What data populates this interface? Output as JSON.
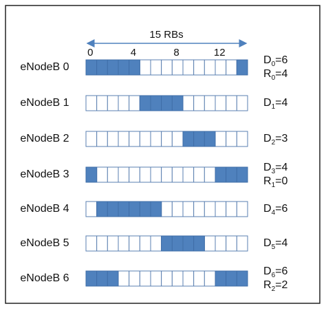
{
  "header": {
    "rb_span": {
      "value": 15,
      "label": "15 RBs"
    },
    "ticks": [
      0,
      4,
      8,
      12
    ]
  },
  "rows": [
    {
      "label": "eNodeB 0",
      "filled": [
        0,
        1,
        2,
        3,
        4,
        14
      ],
      "notes": [
        {
          "name": "D",
          "sub": "0",
          "rest": "=6"
        },
        {
          "name": "R",
          "sub": "0",
          "rest": "=4"
        }
      ]
    },
    {
      "label": "eNodeB 1",
      "filled": [
        5,
        6,
        7,
        8
      ],
      "notes": [
        {
          "name": "D",
          "sub": "1",
          "rest": "=4"
        }
      ]
    },
    {
      "label": "eNodeB 2",
      "filled": [
        9,
        10,
        11
      ],
      "notes": [
        {
          "name": "D",
          "sub": "2",
          "rest": "=3"
        }
      ]
    },
    {
      "label": "eNodeB 3",
      "filled": [
        0,
        12,
        13,
        14
      ],
      "notes": [
        {
          "name": "D",
          "sub": "3",
          "rest": "=4"
        },
        {
          "name": "R",
          "sub": "1",
          "rest": "=0"
        }
      ]
    },
    {
      "label": "eNodeB 4",
      "filled": [
        1,
        2,
        3,
        4,
        5,
        6
      ],
      "notes": [
        {
          "name": "D",
          "sub": "4",
          "rest": "=6"
        }
      ]
    },
    {
      "label": "eNodeB 5",
      "filled": [
        7,
        8,
        9,
        10
      ],
      "notes": [
        {
          "name": "D",
          "sub": "5",
          "rest": "=4"
        }
      ]
    },
    {
      "label": "eNodeB 6",
      "filled": [
        0,
        1,
        2,
        12,
        13,
        14
      ],
      "notes": [
        {
          "name": "D",
          "sub": "6",
          "rest": "=6"
        },
        {
          "name": "R",
          "sub": "2",
          "rest": "=2"
        }
      ]
    }
  ]
}
